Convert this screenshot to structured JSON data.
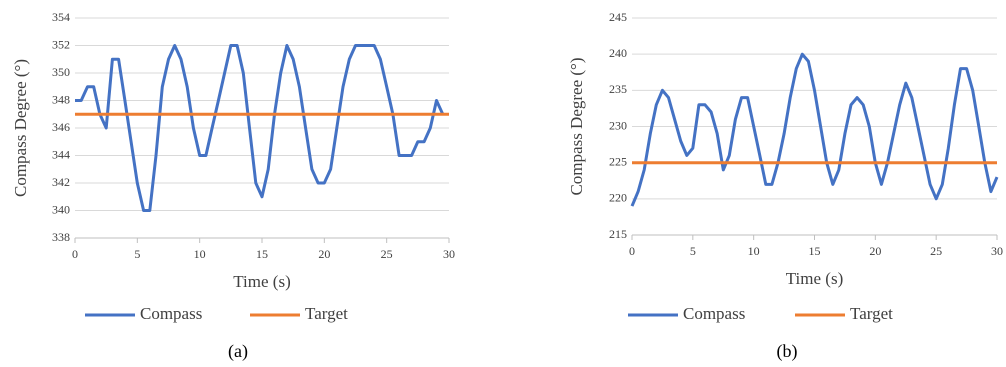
{
  "chart_data": [
    {
      "type": "line",
      "caption": "(a)",
      "x_label": "Time (s)",
      "y_label": "Compass Degree (°)",
      "xlim": [
        0,
        30
      ],
      "xticks": [
        0,
        5,
        10,
        15,
        20,
        25,
        30
      ],
      "ylim": [
        338,
        354
      ],
      "yticks": [
        338,
        340,
        342,
        344,
        346,
        348,
        350,
        352,
        354
      ],
      "grid": true,
      "series": [
        {
          "name": "Compass",
          "color": "#4472c4",
          "x": [
            0,
            0.5,
            1,
            1.5,
            2,
            2.5,
            3,
            3.5,
            4,
            4.5,
            5,
            5.5,
            6,
            6.5,
            7,
            7.5,
            8,
            8.5,
            9,
            9.5,
            10,
            10.5,
            11,
            11.5,
            12,
            12.5,
            13,
            13.5,
            14,
            14.5,
            15,
            15.5,
            16,
            16.5,
            17,
            17.5,
            18,
            18.5,
            19,
            19.5,
            20,
            20.5,
            21,
            21.5,
            22,
            22.5,
            23,
            23.5,
            24,
            24.5,
            25,
            25.5,
            26,
            26.5,
            27,
            27.5,
            28,
            28.5,
            29,
            29.5
          ],
          "values": [
            348,
            348,
            349,
            349,
            347,
            346,
            351,
            351,
            348,
            345,
            342,
            340,
            340,
            344,
            349,
            351,
            352,
            351,
            349,
            346,
            344,
            344,
            346,
            348,
            350,
            352,
            352,
            350,
            346,
            342,
            341,
            343,
            347,
            350,
            352,
            351,
            349,
            346,
            343,
            342,
            342,
            343,
            346,
            349,
            351,
            352,
            352,
            352,
            352,
            351,
            349,
            347,
            344,
            344,
            344,
            345,
            345,
            346,
            348,
            347
          ]
        },
        {
          "name": "Target",
          "color": "#ed7d31",
          "x": [
            0,
            30
          ],
          "values": [
            347,
            347
          ]
        }
      ]
    },
    {
      "type": "line",
      "caption": "(b)",
      "x_label": "Time (s)",
      "y_label": "Compass Degree (°)",
      "xlim": [
        0,
        30
      ],
      "xticks": [
        0,
        5,
        10,
        15,
        20,
        25,
        30
      ],
      "ylim": [
        215,
        245
      ],
      "yticks": [
        215,
        220,
        225,
        230,
        235,
        240,
        245
      ],
      "grid": true,
      "series": [
        {
          "name": "Compass",
          "color": "#4472c4",
          "x": [
            0,
            0.5,
            1,
            1.5,
            2,
            2.5,
            3,
            3.5,
            4,
            4.5,
            5,
            5.5,
            6,
            6.5,
            7,
            7.5,
            8,
            8.5,
            9,
            9.5,
            10,
            10.5,
            11,
            11.5,
            12,
            12.5,
            13,
            13.5,
            14,
            14.5,
            15,
            15.5,
            16,
            16.5,
            17,
            17.5,
            18,
            18.5,
            19,
            19.5,
            20,
            20.5,
            21,
            21.5,
            22,
            22.5,
            23,
            23.5,
            24,
            24.5,
            25,
            25.5,
            26,
            26.5,
            27,
            27.5,
            28,
            28.5,
            29,
            29.5,
            30
          ],
          "values": [
            219,
            221,
            224,
            229,
            233,
            235,
            234,
            231,
            228,
            226,
            227,
            233,
            233,
            232,
            229,
            224,
            226,
            231,
            234,
            234,
            230,
            226,
            222,
            222,
            225,
            229,
            234,
            238,
            240,
            239,
            235,
            230,
            225,
            222,
            224,
            229,
            233,
            234,
            233,
            230,
            225,
            222,
            225,
            229,
            233,
            236,
            234,
            230,
            226,
            222,
            220,
            222,
            227,
            233,
            238,
            238,
            235,
            230,
            225,
            221,
            223
          ]
        },
        {
          "name": "Target",
          "color": "#ed7d31",
          "x": [
            0,
            30
          ],
          "values": [
            225,
            225
          ]
        }
      ]
    }
  ]
}
